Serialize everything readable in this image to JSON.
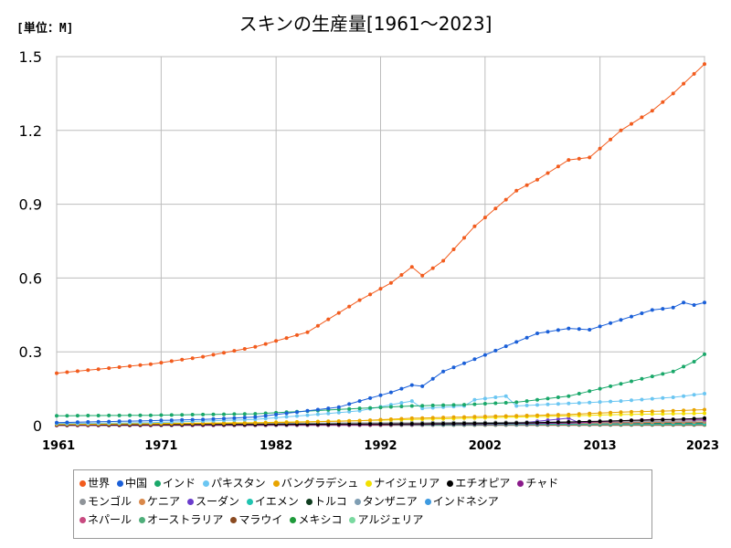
{
  "chart_data": {
    "type": "line",
    "title": "スキンの生産量[1961～2023]",
    "unit_label": "[単位：M]",
    "xlabel": "",
    "ylabel": "",
    "xlim": [
      1961,
      2023
    ],
    "ylim": [
      0,
      1.5
    ],
    "x_ticks": [
      1961,
      1971,
      1982,
      1992,
      2002,
      2013,
      2023
    ],
    "y_ticks": [
      0,
      0.3,
      0.6,
      0.9,
      1.2,
      1.5
    ],
    "y_tick_labels": [
      "0",
      "0.3",
      "0.6",
      "0.9",
      "1.2",
      "1.5"
    ],
    "grid": true,
    "legend_position": "bottom",
    "series": [
      {
        "name": "世界",
        "color": "#f25c1e",
        "keypoints": [
          [
            1961,
            0.213
          ],
          [
            1970,
            0.25
          ],
          [
            1975,
            0.28
          ],
          [
            1980,
            0.32
          ],
          [
            1985,
            0.38
          ],
          [
            1990,
            0.51
          ],
          [
            1993,
            0.58
          ],
          [
            1995,
            0.645
          ],
          [
            1996,
            0.61
          ],
          [
            1998,
            0.67
          ],
          [
            2001,
            0.81
          ],
          [
            2005,
            0.955
          ],
          [
            2007,
            1.0
          ],
          [
            2010,
            1.08
          ],
          [
            2012,
            1.09
          ],
          [
            2015,
            1.2
          ],
          [
            2018,
            1.28
          ],
          [
            2020,
            1.35
          ],
          [
            2023,
            1.47
          ]
        ]
      },
      {
        "name": "中国",
        "color": "#1a5fd8",
        "keypoints": [
          [
            1961,
            0.012
          ],
          [
            1970,
            0.02
          ],
          [
            1975,
            0.025
          ],
          [
            1980,
            0.035
          ],
          [
            1985,
            0.06
          ],
          [
            1988,
            0.075
          ],
          [
            1990,
            0.1
          ],
          [
            1993,
            0.135
          ],
          [
            1995,
            0.165
          ],
          [
            1996,
            0.16
          ],
          [
            1998,
            0.22
          ],
          [
            2001,
            0.27
          ],
          [
            2005,
            0.34
          ],
          [
            2007,
            0.375
          ],
          [
            2010,
            0.395
          ],
          [
            2012,
            0.39
          ],
          [
            2015,
            0.43
          ],
          [
            2018,
            0.47
          ],
          [
            2020,
            0.48
          ],
          [
            2021,
            0.5
          ],
          [
            2022,
            0.49
          ],
          [
            2023,
            0.5
          ]
        ]
      },
      {
        "name": "インド",
        "color": "#1aa86a",
        "keypoints": [
          [
            1961,
            0.04
          ],
          [
            1970,
            0.042
          ],
          [
            1980,
            0.048
          ],
          [
            1990,
            0.07
          ],
          [
            1995,
            0.08
          ],
          [
            2000,
            0.085
          ],
          [
            2005,
            0.095
          ],
          [
            2010,
            0.12
          ],
          [
            2015,
            0.17
          ],
          [
            2020,
            0.22
          ],
          [
            2022,
            0.26
          ],
          [
            2023,
            0.29
          ]
        ]
      },
      {
        "name": "パキスタン",
        "color": "#6bc6f2",
        "keypoints": [
          [
            1961,
            0.008
          ],
          [
            1970,
            0.012
          ],
          [
            1980,
            0.025
          ],
          [
            1990,
            0.06
          ],
          [
            1993,
            0.085
          ],
          [
            1995,
            0.1
          ],
          [
            1996,
            0.07
          ],
          [
            2000,
            0.08
          ],
          [
            2001,
            0.105
          ],
          [
            2004,
            0.12
          ],
          [
            2005,
            0.08
          ],
          [
            2010,
            0.09
          ],
          [
            2015,
            0.1
          ],
          [
            2020,
            0.115
          ],
          [
            2023,
            0.13
          ]
        ]
      },
      {
        "name": "バングラデシュ",
        "color": "#e8a400",
        "keypoints": [
          [
            1961,
            0.004
          ],
          [
            1980,
            0.01
          ],
          [
            1990,
            0.02
          ],
          [
            1995,
            0.03
          ],
          [
            2000,
            0.035
          ],
          [
            2005,
            0.04
          ],
          [
            2010,
            0.045
          ],
          [
            2015,
            0.055
          ],
          [
            2020,
            0.06
          ],
          [
            2023,
            0.065
          ]
        ]
      },
      {
        "name": "ナイジェリア",
        "color": "#f2e000",
        "keypoints": [
          [
            1961,
            0.006
          ],
          [
            1980,
            0.012
          ],
          [
            1990,
            0.02
          ],
          [
            2000,
            0.03
          ],
          [
            2005,
            0.035
          ],
          [
            2010,
            0.04
          ],
          [
            2015,
            0.045
          ],
          [
            2023,
            0.05
          ]
        ]
      },
      {
        "name": "エチオピア",
        "color": "#000000",
        "keypoints": [
          [
            1961,
            0.003
          ],
          [
            1980,
            0.005
          ],
          [
            1990,
            0.006
          ],
          [
            2000,
            0.008
          ],
          [
            2005,
            0.01
          ],
          [
            2010,
            0.015
          ],
          [
            2015,
            0.02
          ],
          [
            2020,
            0.025
          ],
          [
            2023,
            0.03
          ]
        ]
      },
      {
        "name": "チャド",
        "color": "#8a1a8a",
        "keypoints": [
          [
            1961,
            0.001
          ],
          [
            1990,
            0.003
          ],
          [
            2010,
            0.01
          ],
          [
            2018,
            0.025
          ],
          [
            2023,
            0.025
          ]
        ]
      },
      {
        "name": "モンゴル",
        "color": "#8f9499",
        "keypoints": [
          [
            1961,
            0.008
          ],
          [
            1990,
            0.01
          ],
          [
            2000,
            0.012
          ],
          [
            2010,
            0.015
          ],
          [
            2023,
            0.02
          ]
        ]
      },
      {
        "name": "ケニア",
        "color": "#d9884a",
        "keypoints": [
          [
            1961,
            0.003
          ],
          [
            1990,
            0.006
          ],
          [
            2010,
            0.01
          ],
          [
            2023,
            0.015
          ]
        ]
      },
      {
        "name": "スーダン",
        "color": "#6a3ccc",
        "keypoints": [
          [
            1961,
            0.002
          ],
          [
            1990,
            0.006
          ],
          [
            2005,
            0.01
          ],
          [
            2010,
            0.03
          ],
          [
            2011,
            0.012
          ],
          [
            2023,
            0.015
          ]
        ]
      },
      {
        "name": "イエメン",
        "color": "#20c4b0",
        "keypoints": [
          [
            1961,
            0.002
          ],
          [
            2000,
            0.004
          ],
          [
            2023,
            0.008
          ]
        ]
      },
      {
        "name": "トルコ",
        "color": "#0f3d1f",
        "keypoints": [
          [
            1961,
            0.006
          ],
          [
            1990,
            0.01
          ],
          [
            2000,
            0.012
          ],
          [
            2010,
            0.012
          ],
          [
            2023,
            0.01
          ]
        ]
      },
      {
        "name": "タンザニア",
        "color": "#7f9eb3",
        "keypoints": [
          [
            1961,
            0.002
          ],
          [
            2000,
            0.005
          ],
          [
            2023,
            0.012
          ]
        ]
      },
      {
        "name": "インドネシア",
        "color": "#3e9ae0",
        "keypoints": [
          [
            1961,
            0.002
          ],
          [
            2000,
            0.006
          ],
          [
            2023,
            0.012
          ]
        ]
      },
      {
        "name": "ネパール",
        "color": "#c84a80",
        "keypoints": [
          [
            1961,
            0.002
          ],
          [
            2000,
            0.004
          ],
          [
            2023,
            0.008
          ]
        ]
      },
      {
        "name": "オーストラリア",
        "color": "#4fae7a",
        "keypoints": [
          [
            1961,
            0.008
          ],
          [
            1990,
            0.006
          ],
          [
            2023,
            0.005
          ]
        ]
      },
      {
        "name": "マラウイ",
        "color": "#8a4a20",
        "keypoints": [
          [
            1961,
            0.001
          ],
          [
            2023,
            0.003
          ]
        ]
      },
      {
        "name": "メキシコ",
        "color": "#1e9a3a",
        "keypoints": [
          [
            1961,
            0.003
          ],
          [
            2023,
            0.004
          ]
        ]
      },
      {
        "name": "アルジェリア",
        "color": "#7ad9a0",
        "keypoints": [
          [
            1961,
            0.002
          ],
          [
            2023,
            0.005
          ]
        ]
      }
    ]
  }
}
